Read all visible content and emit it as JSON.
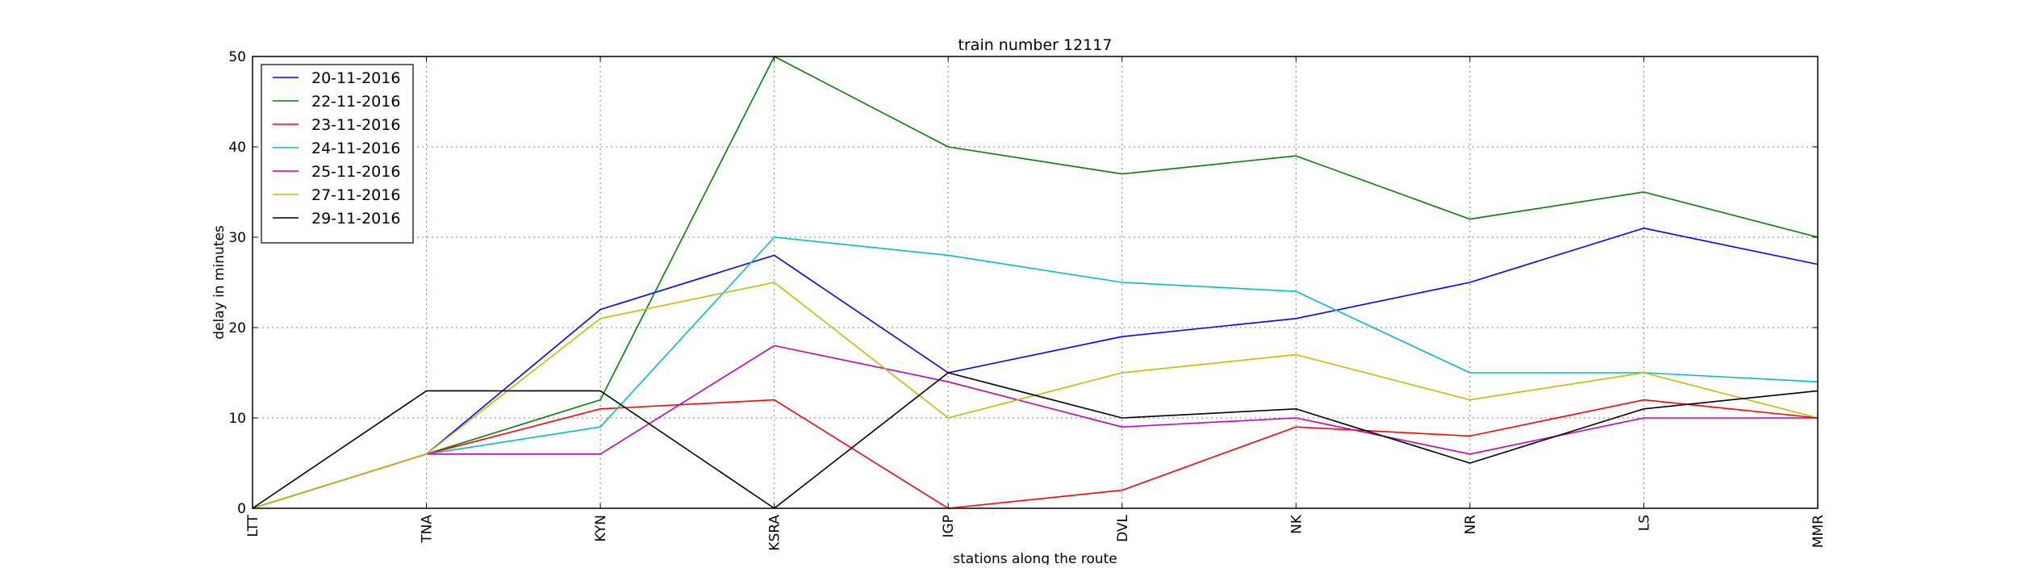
{
  "chart_data": {
    "type": "line",
    "title": "train number 12117",
    "xlabel": "stations along the route",
    "ylabel": "delay in minutes",
    "categories": [
      "LTT",
      "TNA",
      "KYN",
      "KSRA",
      "IGP",
      "DVL",
      "NK",
      "NR",
      "LS",
      "MMR"
    ],
    "ylim": [
      0,
      50
    ],
    "yticks": [
      "0",
      "10",
      "20",
      "30",
      "40",
      "50"
    ],
    "grid": true,
    "legend_position": "top-left",
    "series": [
      {
        "name": "20-11-2016",
        "color": "#0000ff",
        "values": [
          0,
          6,
          22,
          28,
          15,
          19,
          21,
          25,
          31,
          27
        ]
      },
      {
        "name": "22-11-2016",
        "color": "#008000",
        "values": [
          0,
          6,
          12,
          50,
          40,
          37,
          39,
          32,
          35,
          30
        ]
      },
      {
        "name": "23-11-2016",
        "color": "#ff0000",
        "values": [
          0,
          6,
          11,
          12,
          0,
          2,
          9,
          8,
          12,
          10
        ]
      },
      {
        "name": "24-11-2016",
        "color": "#00bfbf",
        "values": [
          0,
          6,
          9,
          30,
          28,
          25,
          24,
          15,
          15,
          14
        ]
      },
      {
        "name": "25-11-2016",
        "color": "#bf00bf",
        "values": [
          0,
          6,
          6,
          18,
          14,
          9,
          10,
          6,
          10,
          10
        ]
      },
      {
        "name": "27-11-2016",
        "color": "#bfbf00",
        "values": [
          0,
          6,
          21,
          25,
          10,
          15,
          17,
          12,
          15,
          10
        ]
      },
      {
        "name": "29-11-2016",
        "color": "#000000",
        "values": [
          0,
          13,
          13,
          0,
          15,
          10,
          11,
          5,
          11,
          13
        ]
      }
    ]
  }
}
